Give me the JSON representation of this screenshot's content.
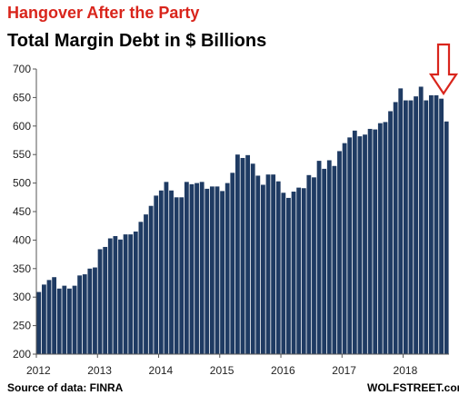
{
  "chart_data": {
    "type": "bar",
    "title": "Hangover After the Party",
    "subtitle": "Total Margin Debt in $ Billions",
    "source": "Source of data: FINRA",
    "credit": "WOLFSTREET.com",
    "start_year": 2012,
    "ylim": [
      200,
      700
    ],
    "yticks": [
      200,
      250,
      300,
      350,
      400,
      450,
      500,
      550,
      600,
      650,
      700
    ],
    "xticks": [
      "2012",
      "2013",
      "2014",
      "2015",
      "2016",
      "2017",
      "2018"
    ],
    "grid": false,
    "values": [
      309,
      322,
      330,
      335,
      315,
      320,
      315,
      320,
      338,
      340,
      350,
      352,
      384,
      388,
      403,
      407,
      401,
      410,
      410,
      415,
      432,
      445,
      460,
      478,
      487,
      502,
      487,
      475,
      475,
      502,
      498,
      500,
      502,
      490,
      494,
      494,
      486,
      500,
      518,
      550,
      544,
      549,
      534,
      513,
      497,
      515,
      515,
      503,
      483,
      474,
      485,
      492,
      491,
      514,
      510,
      539,
      525,
      540,
      530,
      556,
      570,
      580,
      592,
      582,
      585,
      595,
      594,
      605,
      607,
      626,
      642,
      666,
      645,
      645,
      652,
      669,
      645,
      654,
      654,
      648,
      608
    ],
    "colors": {
      "bar": "#1f3b63",
      "title": "#d9251c",
      "arrow": "#d9251c",
      "axis": "#555555"
    }
  }
}
